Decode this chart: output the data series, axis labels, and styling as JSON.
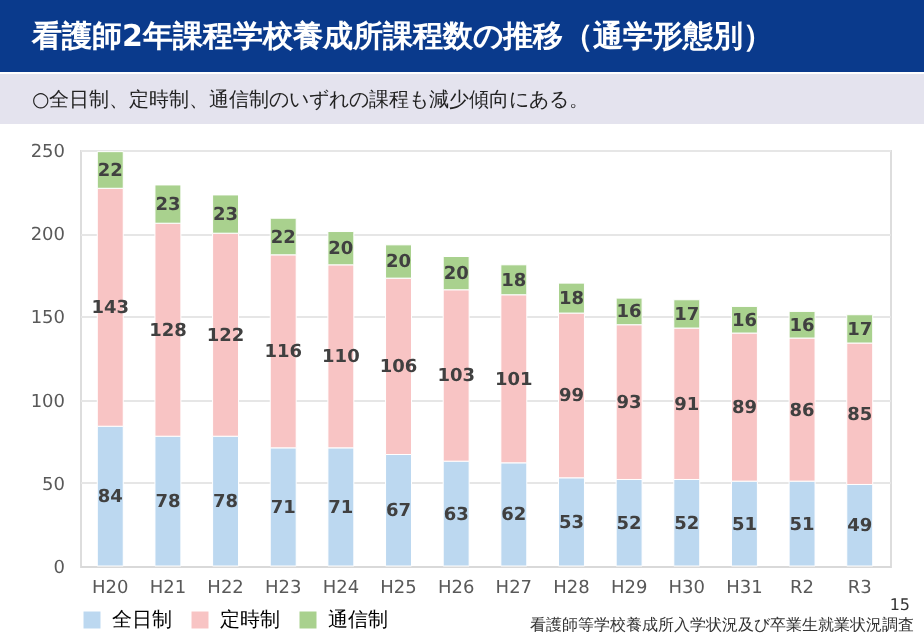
{
  "chart_data": {
    "type": "bar",
    "stacked": true,
    "title": "看護師2年課程学校養成所課程数の推移（通学形態別）",
    "subtitle": "○全日制、定時制、通信制のいずれの課程も減少傾向にある。",
    "categories": [
      "H20",
      "H21",
      "H22",
      "H23",
      "H24",
      "H25",
      "H26",
      "H27",
      "H28",
      "H29",
      "H30",
      "H31",
      "R2",
      "R3"
    ],
    "series": [
      {
        "name": "全日制",
        "color": "#bcd8f0",
        "values": [
          84,
          78,
          78,
          71,
          71,
          67,
          63,
          62,
          53,
          52,
          52,
          51,
          51,
          49
        ]
      },
      {
        "name": "定時制",
        "color": "#f8c4c4",
        "values": [
          143,
          128,
          122,
          116,
          110,
          106,
          103,
          101,
          99,
          93,
          91,
          89,
          86,
          85
        ]
      },
      {
        "name": "通信制",
        "color": "#a9d18e",
        "values": [
          22,
          23,
          23,
          22,
          20,
          20,
          20,
          18,
          18,
          16,
          17,
          16,
          16,
          17
        ]
      }
    ],
    "ylim": [
      0,
      250
    ],
    "yticks": [
      0,
      50,
      100,
      150,
      200,
      250
    ],
    "grid": "y",
    "legend": "bottom left",
    "data_labels": true,
    "annotations": [
      "看護師等学校養成所入学状況及び卒業生就業状況調査",
      "15"
    ]
  }
}
